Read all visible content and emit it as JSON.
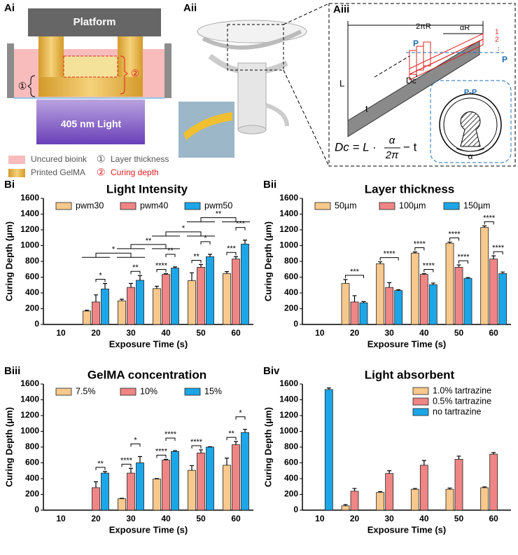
{
  "panels": {
    "ai": "Ai",
    "aii": "Aii",
    "aiii": "Aiii"
  },
  "ai": {
    "platform": "Platform",
    "light": "405 nm Light",
    "marker_1": "①",
    "marker_2": "②",
    "legend": [
      "Uncured bioink",
      "Layer thickness",
      "Printed GelMA",
      "Curing depth"
    ]
  },
  "aiii": {
    "arc": "2πR",
    "arc_alpha": "αR",
    "section_left": "P",
    "section_right": "P",
    "layer_1": "1",
    "layer_2": "2",
    "more": "⋮",
    "length": "L",
    "dc": "Dc",
    "thickness": "t",
    "section": "P-P",
    "angle": "α",
    "formula_left": "Dc = L ·",
    "formula_num": "α",
    "formula_den": "2π",
    "formula_right": "− t"
  },
  "chart_data": [
    {
      "type": "bar",
      "label": "Bi",
      "title": "Light Intensity",
      "xlabel": "Exposure Time (s)",
      "ylabel": "Curing Depth (μm)",
      "categories": [
        "10",
        "20",
        "30",
        "40",
        "50",
        "60"
      ],
      "ylim": [
        0,
        1600
      ],
      "yticks": [
        0,
        200,
        400,
        600,
        800,
        1000,
        1200,
        1400,
        1600
      ],
      "legend": "top",
      "grid": false,
      "series": [
        {
          "name": "pwm30",
          "color": "#f8c88c",
          "values": [
            null,
            170,
            300,
            455,
            555,
            645
          ],
          "errors": [
            null,
            10,
            20,
            30,
            100,
            25
          ]
        },
        {
          "name": "pwm40",
          "color": "#ef8585",
          "values": [
            null,
            285,
            470,
            635,
            725,
            830
          ],
          "errors": [
            null,
            90,
            50,
            10,
            35,
            30
          ]
        },
        {
          "name": "pwm50",
          "color": "#1ca6e8",
          "values": [
            null,
            450,
            560,
            715,
            860,
            1020
          ],
          "errors": [
            null,
            70,
            60,
            15,
            30,
            50
          ]
        }
      ],
      "annotations": [
        "*",
        "**",
        "****",
        "**",
        "**",
        "*",
        "***",
        "***",
        "*",
        "**",
        "*",
        "**"
      ]
    },
    {
      "type": "bar",
      "label": "Bii",
      "title": "Layer thickness",
      "xlabel": "Exposure Time (s)",
      "ylabel": "Curing Depth (μm)",
      "categories": [
        "10",
        "20",
        "30",
        "40",
        "50",
        "60"
      ],
      "ylim": [
        0,
        1600
      ],
      "yticks": [
        0,
        200,
        400,
        600,
        800,
        1000,
        1200,
        1400,
        1600
      ],
      "legend": "top",
      "grid": false,
      "series": [
        {
          "name": "50µm",
          "color": "#f8c88c",
          "values": [
            null,
            520,
            770,
            905,
            1030,
            1230
          ],
          "errors": [
            null,
            50,
            25,
            15,
            15,
            20
          ]
        },
        {
          "name": "100µm",
          "color": "#ef8585",
          "values": [
            null,
            285,
            470,
            635,
            725,
            830
          ],
          "errors": [
            null,
            80,
            60,
            10,
            30,
            40
          ]
        },
        {
          "name": "150µm",
          "color": "#1ca6e8",
          "values": [
            null,
            275,
            430,
            505,
            585,
            645
          ],
          "errors": [
            null,
            15,
            10,
            20,
            10,
            20
          ]
        }
      ],
      "annotations": [
        "***",
        "****",
        "****",
        "****",
        "****",
        "****",
        "****",
        "****"
      ]
    },
    {
      "type": "bar",
      "label": "Biii",
      "title": "GelMA concentration",
      "xlabel": "Exposure Time (s)",
      "ylabel": "Curing Depth (μm)",
      "categories": [
        "10",
        "20",
        "30",
        "40",
        "50",
        "60"
      ],
      "ylim": [
        0,
        1600
      ],
      "yticks": [
        0,
        200,
        400,
        600,
        800,
        1000,
        1200,
        1400,
        1600
      ],
      "legend": "top",
      "grid": false,
      "series": [
        {
          "name": "7.5%",
          "color": "#f8c88c",
          "values": [
            null,
            null,
            145,
            395,
            505,
            570
          ],
          "errors": [
            null,
            null,
            5,
            5,
            60,
            90
          ]
        },
        {
          "name": "10%",
          "color": "#ef8585",
          "values": [
            null,
            285,
            470,
            635,
            725,
            830
          ],
          "errors": [
            null,
            75,
            60,
            10,
            40,
            40
          ]
        },
        {
          "name": "15%",
          "color": "#1ca6e8",
          "values": [
            null,
            470,
            600,
            745,
            800,
            985
          ],
          "errors": [
            null,
            20,
            80,
            10,
            5,
            40
          ]
        }
      ],
      "annotations": [
        "**",
        "****",
        "*",
        "****",
        "****",
        "****",
        "**",
        "*"
      ]
    },
    {
      "type": "bar",
      "label": "Biv",
      "title": "Light absorbent",
      "xlabel": "Exposure Time (s)",
      "ylabel": "Curing Depth (μm)",
      "categories": [
        "10",
        "20",
        "30",
        "40",
        "50",
        "60"
      ],
      "ylim": [
        0,
        1600
      ],
      "yticks": [
        0,
        200,
        400,
        600,
        800,
        1000,
        1200,
        1400,
        1600
      ],
      "legend": "top-right",
      "grid": false,
      "series": [
        {
          "name": "1.0% tartrazine",
          "color": "#f8c88c",
          "values": [
            null,
            55,
            225,
            265,
            265,
            285
          ],
          "errors": [
            null,
            15,
            10,
            10,
            15,
            10
          ]
        },
        {
          "name": "0.5% tartrazine",
          "color": "#ef8585",
          "values": [
            null,
            240,
            465,
            570,
            645,
            710
          ],
          "errors": [
            null,
            35,
            35,
            60,
            40,
            20
          ]
        },
        {
          "name": "no  tartrazine",
          "color": "#1ca6e8",
          "values": [
            1530,
            null,
            null,
            null,
            null,
            null
          ],
          "errors": [
            20,
            null,
            null,
            null,
            null,
            null
          ]
        }
      ],
      "annotations": []
    }
  ]
}
